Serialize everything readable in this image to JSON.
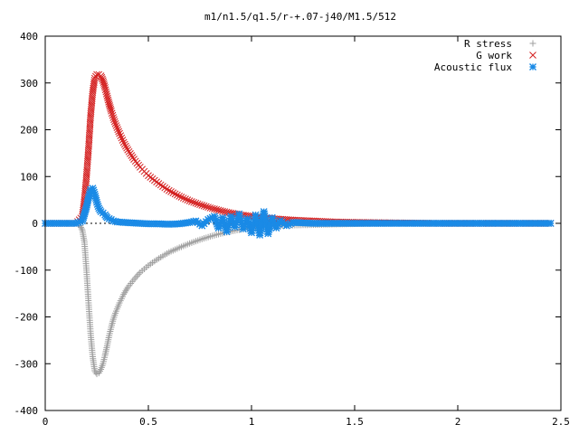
{
  "chart_data": {
    "type": "scatter",
    "title": "m1/n1.5/q1.5/r-+.07-j40/M1.5/512",
    "xlabel": "",
    "ylabel": "",
    "xlim": [
      0,
      2.5
    ],
    "ylim": [
      -400,
      400
    ],
    "x_ticks": [
      0,
      0.5,
      1,
      1.5,
      2,
      2.5
    ],
    "x_tick_labels": [
      "0",
      "0.5",
      "1",
      "1.5",
      "2",
      "2.5"
    ],
    "y_ticks": [
      400,
      300,
      200,
      100,
      0,
      -100,
      -200,
      -300,
      -400
    ],
    "y_tick_labels": [
      "400",
      "300",
      "200",
      "100",
      "0",
      "-100",
      "-200",
      "-300",
      "-400"
    ],
    "grid": false,
    "legend_position": "top-right",
    "series": [
      {
        "name": "R stress",
        "marker": "plus",
        "color": "#a0a0a0",
        "points": [
          [
            0.0,
            0
          ],
          [
            0.05,
            0
          ],
          [
            0.1,
            0
          ],
          [
            0.15,
            0
          ],
          [
            0.17,
            -5
          ],
          [
            0.18,
            -15
          ],
          [
            0.19,
            -40
          ],
          [
            0.2,
            -100
          ],
          [
            0.21,
            -170
          ],
          [
            0.22,
            -235
          ],
          [
            0.23,
            -285
          ],
          [
            0.24,
            -315
          ],
          [
            0.25,
            -322
          ],
          [
            0.26,
            -320
          ],
          [
            0.27,
            -312
          ],
          [
            0.28,
            -300
          ],
          [
            0.29,
            -282
          ],
          [
            0.3,
            -262
          ],
          [
            0.31,
            -240
          ],
          [
            0.32,
            -222
          ],
          [
            0.33,
            -205
          ],
          [
            0.34,
            -192
          ],
          [
            0.36,
            -170
          ],
          [
            0.38,
            -152
          ],
          [
            0.4,
            -137
          ],
          [
            0.43,
            -120
          ],
          [
            0.46,
            -105
          ],
          [
            0.5,
            -90
          ],
          [
            0.55,
            -75
          ],
          [
            0.6,
            -62
          ],
          [
            0.65,
            -52
          ],
          [
            0.7,
            -43
          ],
          [
            0.75,
            -35
          ],
          [
            0.8,
            -28
          ],
          [
            0.85,
            -22
          ],
          [
            0.9,
            -17
          ],
          [
            0.95,
            -13
          ],
          [
            1.0,
            -10
          ],
          [
            1.05,
            -8
          ],
          [
            1.1,
            -6
          ],
          [
            1.2,
            -4
          ],
          [
            1.3,
            -3
          ],
          [
            1.4,
            -2
          ],
          [
            1.5,
            -1
          ],
          [
            1.7,
            0
          ],
          [
            1.9,
            0
          ],
          [
            2.1,
            0
          ],
          [
            2.3,
            0
          ],
          [
            2.45,
            0
          ]
        ]
      },
      {
        "name": "G work",
        "marker": "cross",
        "color": "#d42020",
        "points": [
          [
            0.0,
            0
          ],
          [
            0.05,
            0
          ],
          [
            0.1,
            0
          ],
          [
            0.15,
            0
          ],
          [
            0.18,
            15
          ],
          [
            0.19,
            50
          ],
          [
            0.2,
            100
          ],
          [
            0.21,
            160
          ],
          [
            0.22,
            230
          ],
          [
            0.23,
            280
          ],
          [
            0.24,
            310
          ],
          [
            0.25,
            318
          ],
          [
            0.26,
            318
          ],
          [
            0.27,
            315
          ],
          [
            0.28,
            305
          ],
          [
            0.29,
            290
          ],
          [
            0.3,
            272
          ],
          [
            0.31,
            255
          ],
          [
            0.32,
            240
          ],
          [
            0.33,
            226
          ],
          [
            0.34,
            213
          ],
          [
            0.36,
            192
          ],
          [
            0.38,
            173
          ],
          [
            0.4,
            157
          ],
          [
            0.43,
            137
          ],
          [
            0.46,
            120
          ],
          [
            0.5,
            102
          ],
          [
            0.55,
            85
          ],
          [
            0.6,
            70
          ],
          [
            0.65,
            58
          ],
          [
            0.7,
            48
          ],
          [
            0.75,
            40
          ],
          [
            0.8,
            33
          ],
          [
            0.85,
            27
          ],
          [
            0.9,
            22
          ],
          [
            0.95,
            18
          ],
          [
            1.0,
            15
          ],
          [
            1.05,
            12
          ],
          [
            1.1,
            10
          ],
          [
            1.2,
            7
          ],
          [
            1.3,
            5
          ],
          [
            1.4,
            3
          ],
          [
            1.5,
            2
          ],
          [
            1.7,
            1
          ],
          [
            1.9,
            0
          ],
          [
            2.1,
            0
          ],
          [
            2.3,
            0
          ],
          [
            2.45,
            0
          ]
        ]
      },
      {
        "name": "Acoustic flux",
        "marker": "star",
        "color": "#1a8ae6",
        "points": [
          [
            0.0,
            0
          ],
          [
            0.03,
            0
          ],
          [
            0.06,
            0
          ],
          [
            0.09,
            0
          ],
          [
            0.12,
            0
          ],
          [
            0.15,
            0
          ],
          [
            0.18,
            5
          ],
          [
            0.19,
            20
          ],
          [
            0.2,
            35
          ],
          [
            0.21,
            55
          ],
          [
            0.22,
            72
          ],
          [
            0.23,
            75
          ],
          [
            0.24,
            62
          ],
          [
            0.25,
            45
          ],
          [
            0.26,
            32
          ],
          [
            0.27,
            25
          ],
          [
            0.28,
            22
          ],
          [
            0.29,
            18
          ],
          [
            0.3,
            12
          ],
          [
            0.31,
            10
          ],
          [
            0.32,
            8
          ],
          [
            0.33,
            5
          ],
          [
            0.35,
            3
          ],
          [
            0.38,
            2
          ],
          [
            0.42,
            1
          ],
          [
            0.46,
            0
          ],
          [
            0.5,
            -1
          ],
          [
            0.55,
            -1
          ],
          [
            0.6,
            -2
          ],
          [
            0.65,
            -1
          ],
          [
            0.7,
            2
          ],
          [
            0.73,
            5
          ],
          [
            0.76,
            -5
          ],
          [
            0.79,
            8
          ],
          [
            0.82,
            15
          ],
          [
            0.84,
            -10
          ],
          [
            0.86,
            12
          ],
          [
            0.88,
            -18
          ],
          [
            0.9,
            15
          ],
          [
            0.92,
            -8
          ],
          [
            0.94,
            20
          ],
          [
            0.96,
            -12
          ],
          [
            0.98,
            10
          ],
          [
            1.0,
            -20
          ],
          [
            1.02,
            18
          ],
          [
            1.04,
            -25
          ],
          [
            1.06,
            25
          ],
          [
            1.08,
            -22
          ],
          [
            1.1,
            12
          ],
          [
            1.12,
            -10
          ],
          [
            1.14,
            6
          ],
          [
            1.17,
            -5
          ],
          [
            1.2,
            2
          ],
          [
            1.25,
            1
          ],
          [
            1.3,
            0
          ],
          [
            1.4,
            0
          ],
          [
            1.5,
            0
          ],
          [
            1.6,
            0
          ],
          [
            1.7,
            0
          ],
          [
            1.8,
            0
          ],
          [
            1.9,
            0
          ],
          [
            2.0,
            0
          ],
          [
            2.1,
            0
          ],
          [
            2.2,
            0
          ],
          [
            2.3,
            0
          ],
          [
            2.4,
            0
          ],
          [
            2.45,
            0
          ]
        ]
      }
    ]
  }
}
